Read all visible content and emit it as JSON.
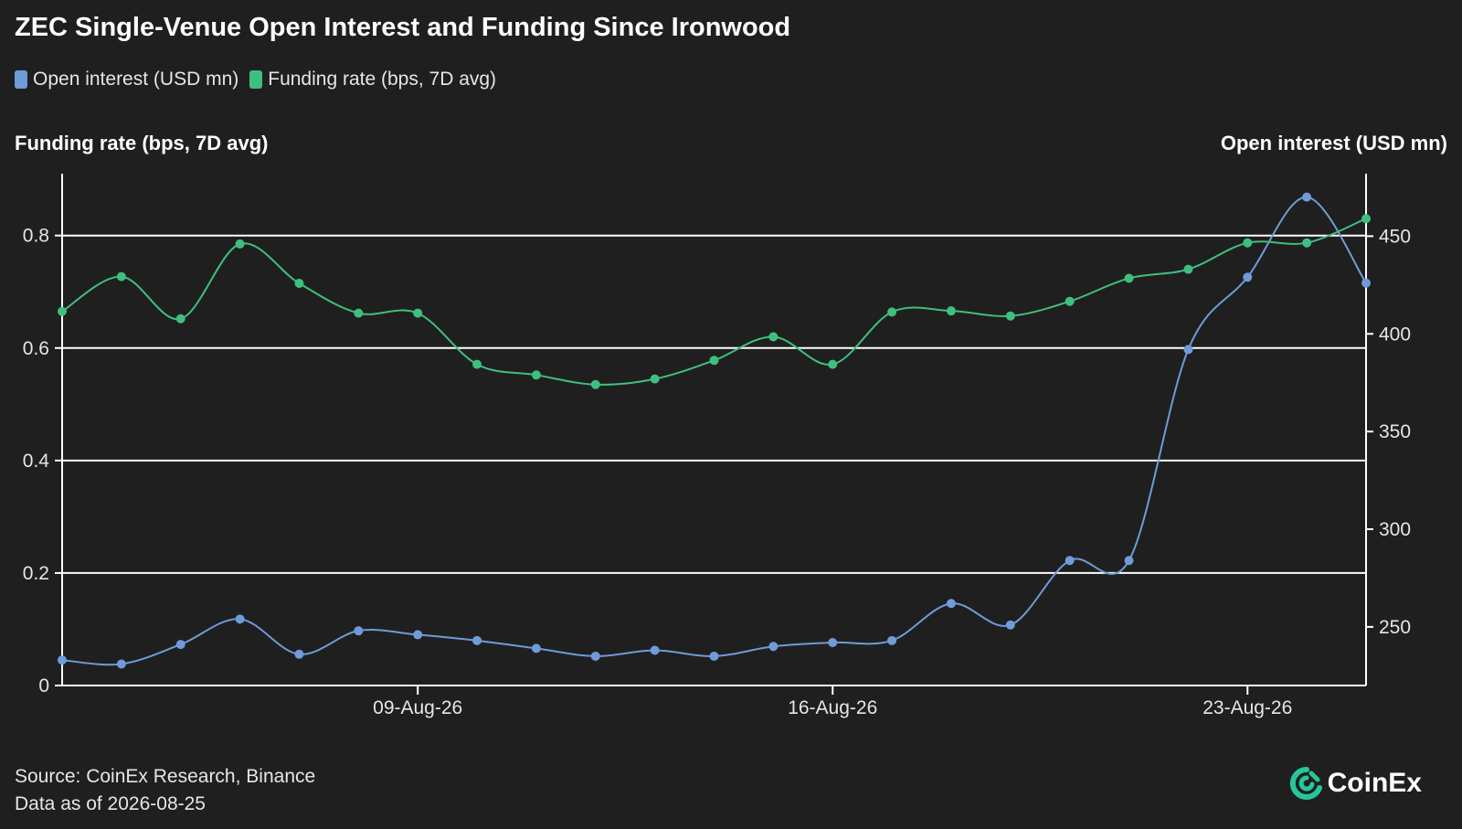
{
  "title": "ZEC Single-Venue Open Interest and Funding Since Ironwood",
  "legend": [
    {
      "label": "Open interest (USD mn)",
      "color": "#6f9bd8"
    },
    {
      "label": "Funding rate (bps, 7D avg)",
      "color": "#3fbf7f"
    }
  ],
  "footer": {
    "source": "Source: CoinEx Research, Binance",
    "asof": "Data as of 2026-08-25"
  },
  "brand": {
    "name": "CoinEx",
    "icon": "coinex-logo-icon",
    "color": "#27c59a"
  },
  "chart_data": {
    "type": "line",
    "title": "ZEC Single-Venue Open Interest and Funding Since Ironwood",
    "x": [
      "2026-08-03",
      "2026-08-04",
      "2026-08-05",
      "2026-08-06",
      "2026-08-07",
      "2026-08-08",
      "2026-08-09",
      "2026-08-10",
      "2026-08-11",
      "2026-08-12",
      "2026-08-13",
      "2026-08-14",
      "2026-08-15",
      "2026-08-16",
      "2026-08-17",
      "2026-08-18",
      "2026-08-19",
      "2026-08-20",
      "2026-08-21",
      "2026-08-22",
      "2026-08-23",
      "2026-08-24",
      "2026-08-25"
    ],
    "x_ticks": [
      {
        "date": "2026-08-09",
        "label": "09-Aug-26"
      },
      {
        "date": "2026-08-16",
        "label": "16-Aug-26"
      },
      {
        "date": "2026-08-23",
        "label": "23-Aug-26"
      }
    ],
    "y_left": {
      "label": "Funding rate (bps, 7D avg)",
      "lim": [
        0,
        0.91
      ],
      "ticks": [
        0,
        0.2,
        0.4,
        0.6,
        0.8
      ],
      "tick_labels": [
        "0",
        "0.2",
        "0.4",
        "0.6",
        "0.8"
      ]
    },
    "y_right": {
      "label": "Open interest (USD mn)",
      "lim": [
        220,
        482
      ],
      "ticks": [
        250,
        300,
        350,
        400,
        450
      ],
      "tick_labels": [
        "250",
        "300",
        "350",
        "400",
        "450"
      ]
    },
    "grid": true,
    "legend_position": "top-left",
    "series": [
      {
        "name": "Open interest (USD mn)",
        "axis": "right",
        "color": "#6f9bd8",
        "values": [
          233,
          231,
          241,
          254,
          236,
          248,
          246,
          243,
          239,
          235,
          238,
          235,
          240,
          242,
          243,
          262,
          251,
          284,
          284,
          392,
          429,
          470,
          426
        ]
      },
      {
        "name": "Funding rate (bps, 7D avg)",
        "axis": "left",
        "color": "#3fbf7f",
        "values": [
          0.665,
          0.727,
          0.652,
          0.785,
          0.715,
          0.662,
          0.662,
          0.571,
          0.552,
          0.535,
          0.545,
          0.578,
          0.62,
          0.571,
          0.664,
          0.666,
          0.657,
          0.683,
          0.724,
          0.74,
          0.787,
          0.787,
          0.83
        ]
      }
    ]
  }
}
